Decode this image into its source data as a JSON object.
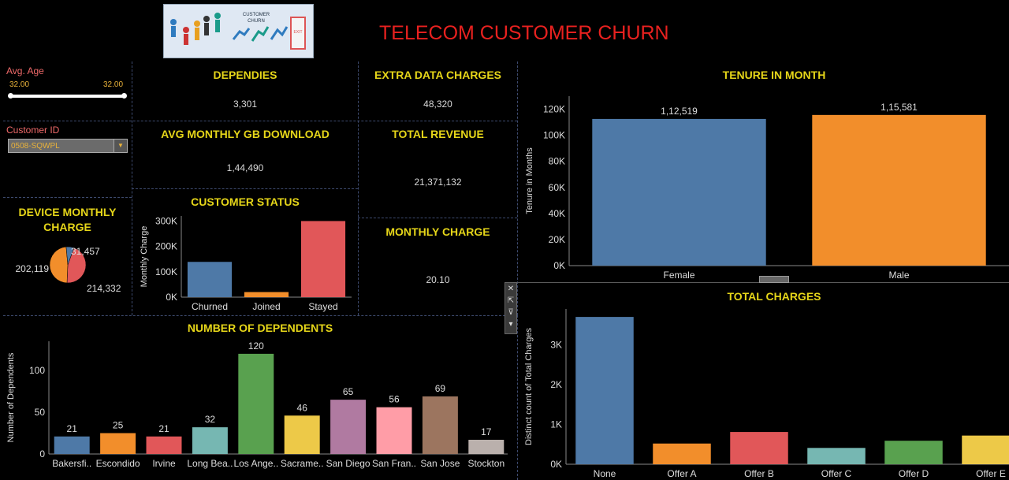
{
  "header": {
    "title": "TELECOM CUSTOMER CHURN",
    "logo_text_1": "CUSTOMER",
    "logo_text_2": "CHURN",
    "logo_exit": "EXIT"
  },
  "filters": {
    "avg_age": {
      "label": "Avg. Age",
      "min": "32.00",
      "max": "32.00"
    },
    "customer_id": {
      "label": "Customer ID",
      "value": "0508-SQWPL"
    }
  },
  "kpis": {
    "dependies": {
      "title": "DEPENDIES",
      "value": "3,301"
    },
    "extra_data": {
      "title": "EXTRA DATA CHARGES",
      "value": "48,320"
    },
    "avg_gb": {
      "title": "AVG MONTHLY GB DOWNLOAD",
      "value": "1,44,490"
    },
    "total_revenue": {
      "title": "TOTAL REVENUE",
      "value": "21,371,132"
    },
    "monthly_charge": {
      "title": "MONTHLY CHARGE",
      "value": "20.10"
    }
  },
  "colors": {
    "blue": "#4e79a7",
    "orange": "#f28e2b",
    "red": "#e15759",
    "teal": "#76b7b2",
    "green": "#59a14f",
    "yellow": "#edc948",
    "purple": "#b07aa1",
    "pink": "#ff9da7",
    "brown": "#9c755f",
    "gray": "#bab0ac"
  },
  "toolbar": {
    "icons": [
      "close-icon",
      "open-icon",
      "filter-icon",
      "more-icon"
    ]
  },
  "chart_data": [
    {
      "id": "device",
      "type": "pie",
      "title_line1": "DEVICE MONTHLY",
      "title_line2": "CHARGE",
      "values": [
        202119,
        214332,
        31457
      ],
      "labels": [
        "202,119",
        "214,332",
        "31,457"
      ],
      "colors": [
        "#e15759",
        "#f28e2b",
        "#4e79a7"
      ]
    },
    {
      "id": "status",
      "type": "bar",
      "title": "CUSTOMER STATUS",
      "ylabel": "Monthly Charge",
      "categories": [
        "Churned",
        "Joined",
        "Stayed"
      ],
      "values": [
        139000,
        20000,
        300000
      ],
      "colors": [
        "#4e79a7",
        "#f28e2b",
        "#e15759"
      ],
      "ylim": [
        0,
        320000
      ],
      "yticks": [
        0,
        100000,
        200000,
        300000
      ],
      "ytick_labels": [
        "0K",
        "100K",
        "200K",
        "300K"
      ]
    },
    {
      "id": "tenure",
      "type": "bar",
      "title": "TENURE IN MONTH",
      "ylabel": "Tenure in Months",
      "categories": [
        "Female",
        "Male"
      ],
      "values": [
        112519,
        115581
      ],
      "data_labels": [
        "1,12,519",
        "1,15,581"
      ],
      "colors": [
        "#4e79a7",
        "#f28e2b"
      ],
      "ylim": [
        0,
        130000
      ],
      "yticks": [
        0,
        20000,
        40000,
        60000,
        80000,
        100000,
        120000
      ],
      "ytick_labels": [
        "0K",
        "20K",
        "40K",
        "60K",
        "80K",
        "100K",
        "120K"
      ]
    },
    {
      "id": "dependents",
      "type": "bar",
      "title": "NUMBER OF DEPENDENTS",
      "ylabel": "Number of Dependents",
      "categories": [
        "Bakersfi..",
        "Escondido",
        "Irvine",
        "Long Bea..",
        "Los Ange..",
        "Sacrame..",
        "San Diego",
        "San Fran..",
        "San Jose",
        "Stockton"
      ],
      "values": [
        21,
        25,
        21,
        32,
        120,
        46,
        65,
        56,
        69,
        17
      ],
      "data_labels": [
        "21",
        "25",
        "21",
        "32",
        "120",
        "46",
        "65",
        "56",
        "69",
        "17"
      ],
      "colors": [
        "#4e79a7",
        "#f28e2b",
        "#e15759",
        "#76b7b2",
        "#59a14f",
        "#edc948",
        "#b07aa1",
        "#ff9da7",
        "#9c755f",
        "#bab0ac"
      ],
      "ylim": [
        0,
        135
      ],
      "yticks": [
        0,
        50,
        100
      ],
      "ytick_labels": [
        "0",
        "50",
        "100"
      ]
    },
    {
      "id": "charges",
      "type": "bar",
      "title": "TOTAL CHARGES",
      "ylabel": "Distinct count of Total Charges",
      "categories": [
        "None",
        "Offer A",
        "Offer B",
        "Offer C",
        "Offer D",
        "Offer E"
      ],
      "values": [
        3700,
        520,
        810,
        410,
        590,
        720
      ],
      "colors": [
        "#4e79a7",
        "#f28e2b",
        "#e15759",
        "#76b7b2",
        "#59a14f",
        "#edc948"
      ],
      "ylim": [
        0,
        3900
      ],
      "yticks": [
        0,
        1000,
        2000,
        3000
      ],
      "ytick_labels": [
        "0K",
        "1K",
        "2K",
        "3K"
      ]
    }
  ]
}
